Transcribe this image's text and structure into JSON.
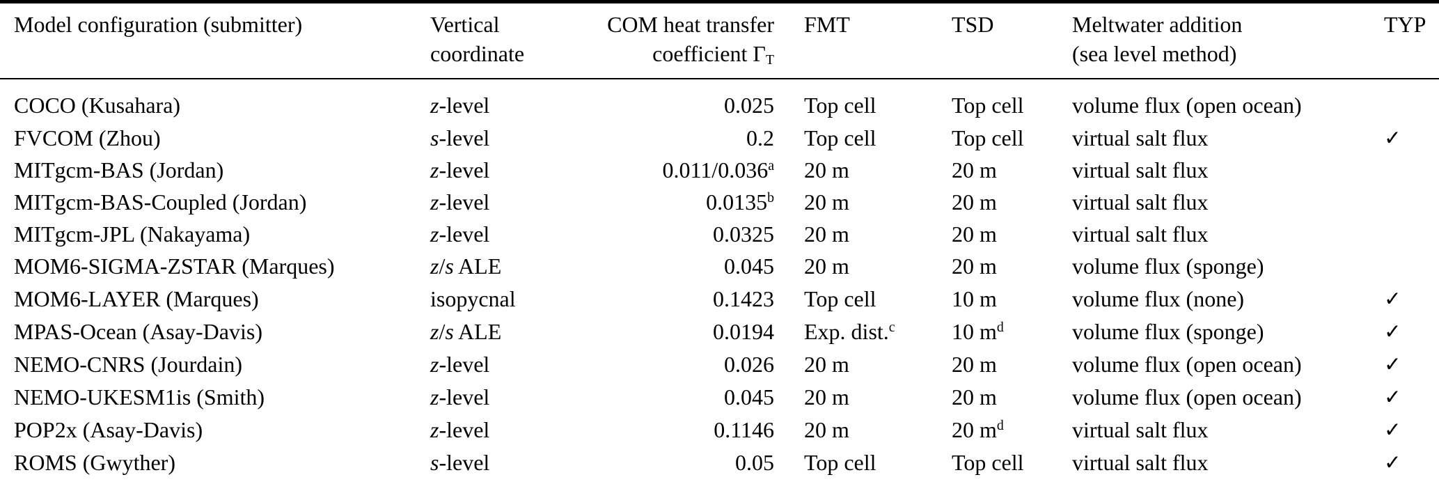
{
  "table": {
    "colors": {
      "text": "#000000",
      "background": "#ffffff",
      "rule": "#000000"
    },
    "check_glyph": "✓",
    "columns": {
      "model": {
        "label": "Model configuration (submitter)"
      },
      "vertical": {
        "line1": "Vertical",
        "line2": "coordinate"
      },
      "gamma": {
        "line1": "COM heat transfer",
        "line2_pre": "coefficient Γ",
        "line2_sub": "T"
      },
      "fmt": {
        "label": "FMT"
      },
      "tsd": {
        "label": "TSD"
      },
      "meltwater": {
        "line1": "Meltwater addition",
        "line2": "(sea level method)"
      },
      "typ": {
        "label": "TYP"
      }
    },
    "rows": [
      {
        "model": "COCO (Kusahara)",
        "vertical": [
          {
            "i": 1,
            "t": "z"
          },
          {
            "i": 0,
            "t": "-level"
          }
        ],
        "gamma": {
          "v": "0.025",
          "sup": ""
        },
        "fmt": {
          "v": "Top cell",
          "sup": ""
        },
        "tsd": {
          "v": "Top cell",
          "sup": ""
        },
        "meltwater": "volume flux (open ocean)",
        "typ": false
      },
      {
        "model": "FVCOM (Zhou)",
        "vertical": [
          {
            "i": 1,
            "t": "s"
          },
          {
            "i": 0,
            "t": "-level"
          }
        ],
        "gamma": {
          "v": "0.2",
          "sup": ""
        },
        "fmt": {
          "v": "Top cell",
          "sup": ""
        },
        "tsd": {
          "v": "Top cell",
          "sup": ""
        },
        "meltwater": "virtual salt flux",
        "typ": true
      },
      {
        "model": "MITgcm-BAS (Jordan)",
        "vertical": [
          {
            "i": 1,
            "t": "z"
          },
          {
            "i": 0,
            "t": "-level"
          }
        ],
        "gamma": {
          "v": "0.011/0.036",
          "sup": "a"
        },
        "fmt": {
          "v": "20 m",
          "sup": ""
        },
        "tsd": {
          "v": "20 m",
          "sup": ""
        },
        "meltwater": "virtual salt flux",
        "typ": false
      },
      {
        "model": "MITgcm-BAS-Coupled (Jordan)",
        "vertical": [
          {
            "i": 1,
            "t": "z"
          },
          {
            "i": 0,
            "t": "-level"
          }
        ],
        "gamma": {
          "v": "0.0135",
          "sup": "b"
        },
        "fmt": {
          "v": "20 m",
          "sup": ""
        },
        "tsd": {
          "v": "20 m",
          "sup": ""
        },
        "meltwater": "virtual salt flux",
        "typ": false
      },
      {
        "model": "MITgcm-JPL (Nakayama)",
        "vertical": [
          {
            "i": 1,
            "t": "z"
          },
          {
            "i": 0,
            "t": "-level"
          }
        ],
        "gamma": {
          "v": "0.0325",
          "sup": ""
        },
        "fmt": {
          "v": "20 m",
          "sup": ""
        },
        "tsd": {
          "v": "20 m",
          "sup": ""
        },
        "meltwater": "virtual salt flux",
        "typ": false
      },
      {
        "model": "MOM6-SIGMA-ZSTAR (Marques)",
        "vertical": [
          {
            "i": 1,
            "t": "z"
          },
          {
            "i": 0,
            "t": "/"
          },
          {
            "i": 1,
            "t": "s"
          },
          {
            "i": 0,
            "t": " ALE"
          }
        ],
        "gamma": {
          "v": "0.045",
          "sup": ""
        },
        "fmt": {
          "v": "20 m",
          "sup": ""
        },
        "tsd": {
          "v": "20 m",
          "sup": ""
        },
        "meltwater": "volume flux (sponge)",
        "typ": false
      },
      {
        "model": "MOM6-LAYER (Marques)",
        "vertical": [
          {
            "i": 0,
            "t": "isopycnal"
          }
        ],
        "gamma": {
          "v": "0.1423",
          "sup": ""
        },
        "fmt": {
          "v": "Top cell",
          "sup": ""
        },
        "tsd": {
          "v": "10 m",
          "sup": ""
        },
        "meltwater": "volume flux (none)",
        "typ": true
      },
      {
        "model": "MPAS-Ocean (Asay-Davis)",
        "vertical": [
          {
            "i": 1,
            "t": "z"
          },
          {
            "i": 0,
            "t": "/"
          },
          {
            "i": 1,
            "t": "s"
          },
          {
            "i": 0,
            "t": " ALE"
          }
        ],
        "gamma": {
          "v": "0.0194",
          "sup": ""
        },
        "fmt": {
          "v": "Exp. dist.",
          "sup": "c"
        },
        "tsd": {
          "v": "10 m",
          "sup": "d"
        },
        "meltwater": "volume flux (sponge)",
        "typ": true
      },
      {
        "model": "NEMO-CNRS (Jourdain)",
        "vertical": [
          {
            "i": 1,
            "t": "z"
          },
          {
            "i": 0,
            "t": "-level"
          }
        ],
        "gamma": {
          "v": "0.026",
          "sup": ""
        },
        "fmt": {
          "v": "20 m",
          "sup": ""
        },
        "tsd": {
          "v": "20 m",
          "sup": ""
        },
        "meltwater": "volume flux (open ocean)",
        "typ": true
      },
      {
        "model": "NEMO-UKESM1is (Smith)",
        "vertical": [
          {
            "i": 1,
            "t": "z"
          },
          {
            "i": 0,
            "t": "-level"
          }
        ],
        "gamma": {
          "v": "0.045",
          "sup": ""
        },
        "fmt": {
          "v": "20 m",
          "sup": ""
        },
        "tsd": {
          "v": "20 m",
          "sup": ""
        },
        "meltwater": "volume flux (open ocean)",
        "typ": true
      },
      {
        "model": "POP2x (Asay-Davis)",
        "vertical": [
          {
            "i": 1,
            "t": "z"
          },
          {
            "i": 0,
            "t": "-level"
          }
        ],
        "gamma": {
          "v": "0.1146",
          "sup": ""
        },
        "fmt": {
          "v": "20 m",
          "sup": ""
        },
        "tsd": {
          "v": "20 m",
          "sup": "d"
        },
        "meltwater": "virtual salt flux",
        "typ": true
      },
      {
        "model": "ROMS (Gwyther)",
        "vertical": [
          {
            "i": 1,
            "t": "s"
          },
          {
            "i": 0,
            "t": "-level"
          }
        ],
        "gamma": {
          "v": "0.05",
          "sup": ""
        },
        "fmt": {
          "v": "Top cell",
          "sup": ""
        },
        "tsd": {
          "v": "Top cell",
          "sup": ""
        },
        "meltwater": "virtual salt flux",
        "typ": true
      }
    ]
  }
}
